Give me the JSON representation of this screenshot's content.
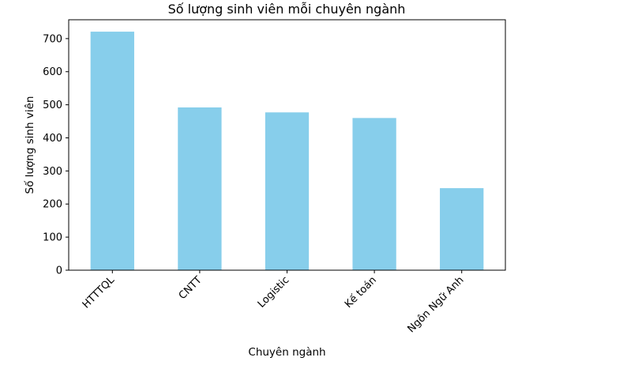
{
  "chart_data": {
    "type": "bar",
    "title": "Số lượng sinh viên mỗi chuyên ngành",
    "xlabel": "Chuyên ngành",
    "ylabel": "Số lượng sinh viên",
    "categories": [
      "HTTTQL",
      "CNTT",
      "Logistic",
      "Kế toán",
      "Ngôn Ngữ Anh"
    ],
    "values": [
      721,
      492,
      477,
      460,
      248
    ],
    "ylim": [
      0,
      757
    ],
    "yticks": [
      0,
      100,
      200,
      300,
      400,
      500,
      600,
      700
    ],
    "grid": false,
    "legend": "none",
    "bar_color": "#87CEEB",
    "xtick_rotation": 45
  }
}
